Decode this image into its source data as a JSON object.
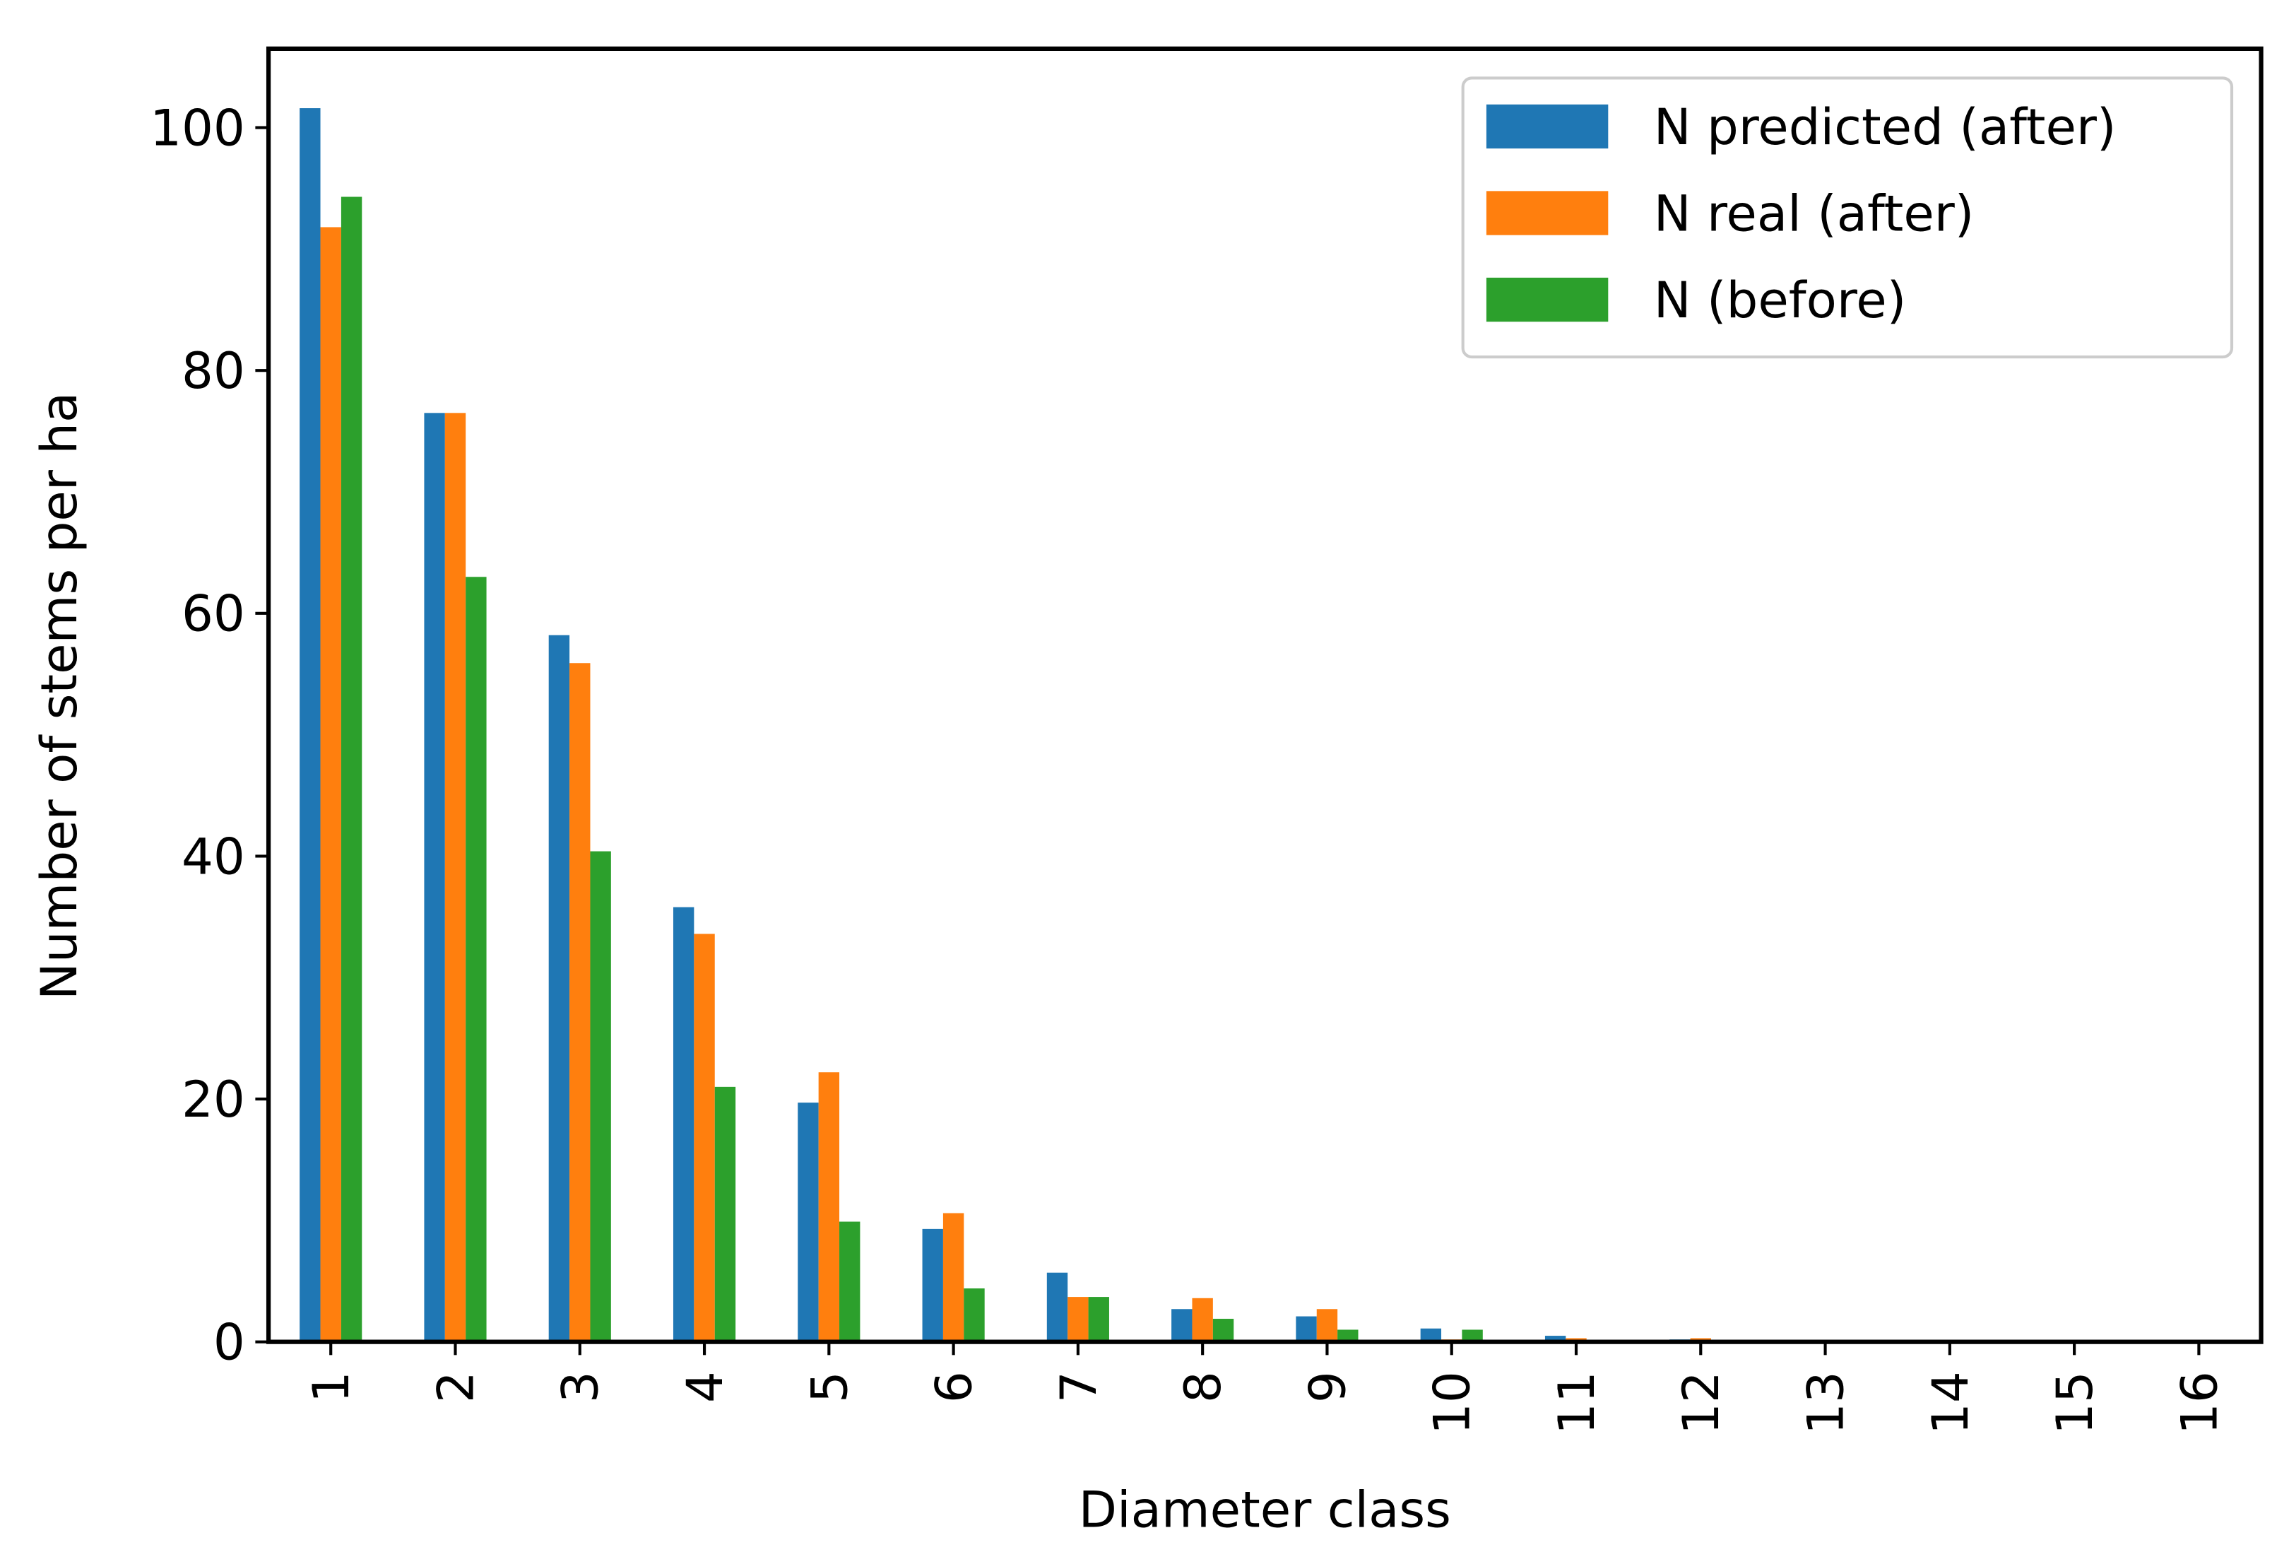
{
  "chart_data": {
    "type": "bar",
    "x_label": "Diameter class",
    "y_label": "Number of stems per ha",
    "categories": [
      "1",
      "2",
      "3",
      "4",
      "5",
      "6",
      "7",
      "8",
      "9",
      "10",
      "11",
      "12",
      "13",
      "14",
      "15",
      "16"
    ],
    "series": [
      {
        "name": "N predicted (after)",
        "color": "#1f77b4",
        "values": [
          101.6,
          76.5,
          58.2,
          35.8,
          19.7,
          9.3,
          5.7,
          2.7,
          2.1,
          1.1,
          0.5,
          0.2,
          0,
          0,
          0,
          0
        ]
      },
      {
        "name": "N real (after)",
        "color": "#ff7f0e",
        "values": [
          91.8,
          76.5,
          55.9,
          33.6,
          22.2,
          10.6,
          3.7,
          3.6,
          2.7,
          0.2,
          0.3,
          0.3,
          0,
          0,
          0,
          0
        ]
      },
      {
        "name": "N (before)",
        "color": "#2ca02c",
        "values": [
          94.3,
          63.0,
          40.4,
          21.0,
          9.9,
          4.4,
          3.7,
          1.9,
          1.0,
          1.0,
          0.1,
          0,
          0,
          0,
          0,
          0
        ]
      }
    ],
    "ylim": [
      0,
      106.5
    ],
    "yticks": [
      0,
      20,
      40,
      60,
      80,
      100
    ],
    "legend": "upper right"
  }
}
